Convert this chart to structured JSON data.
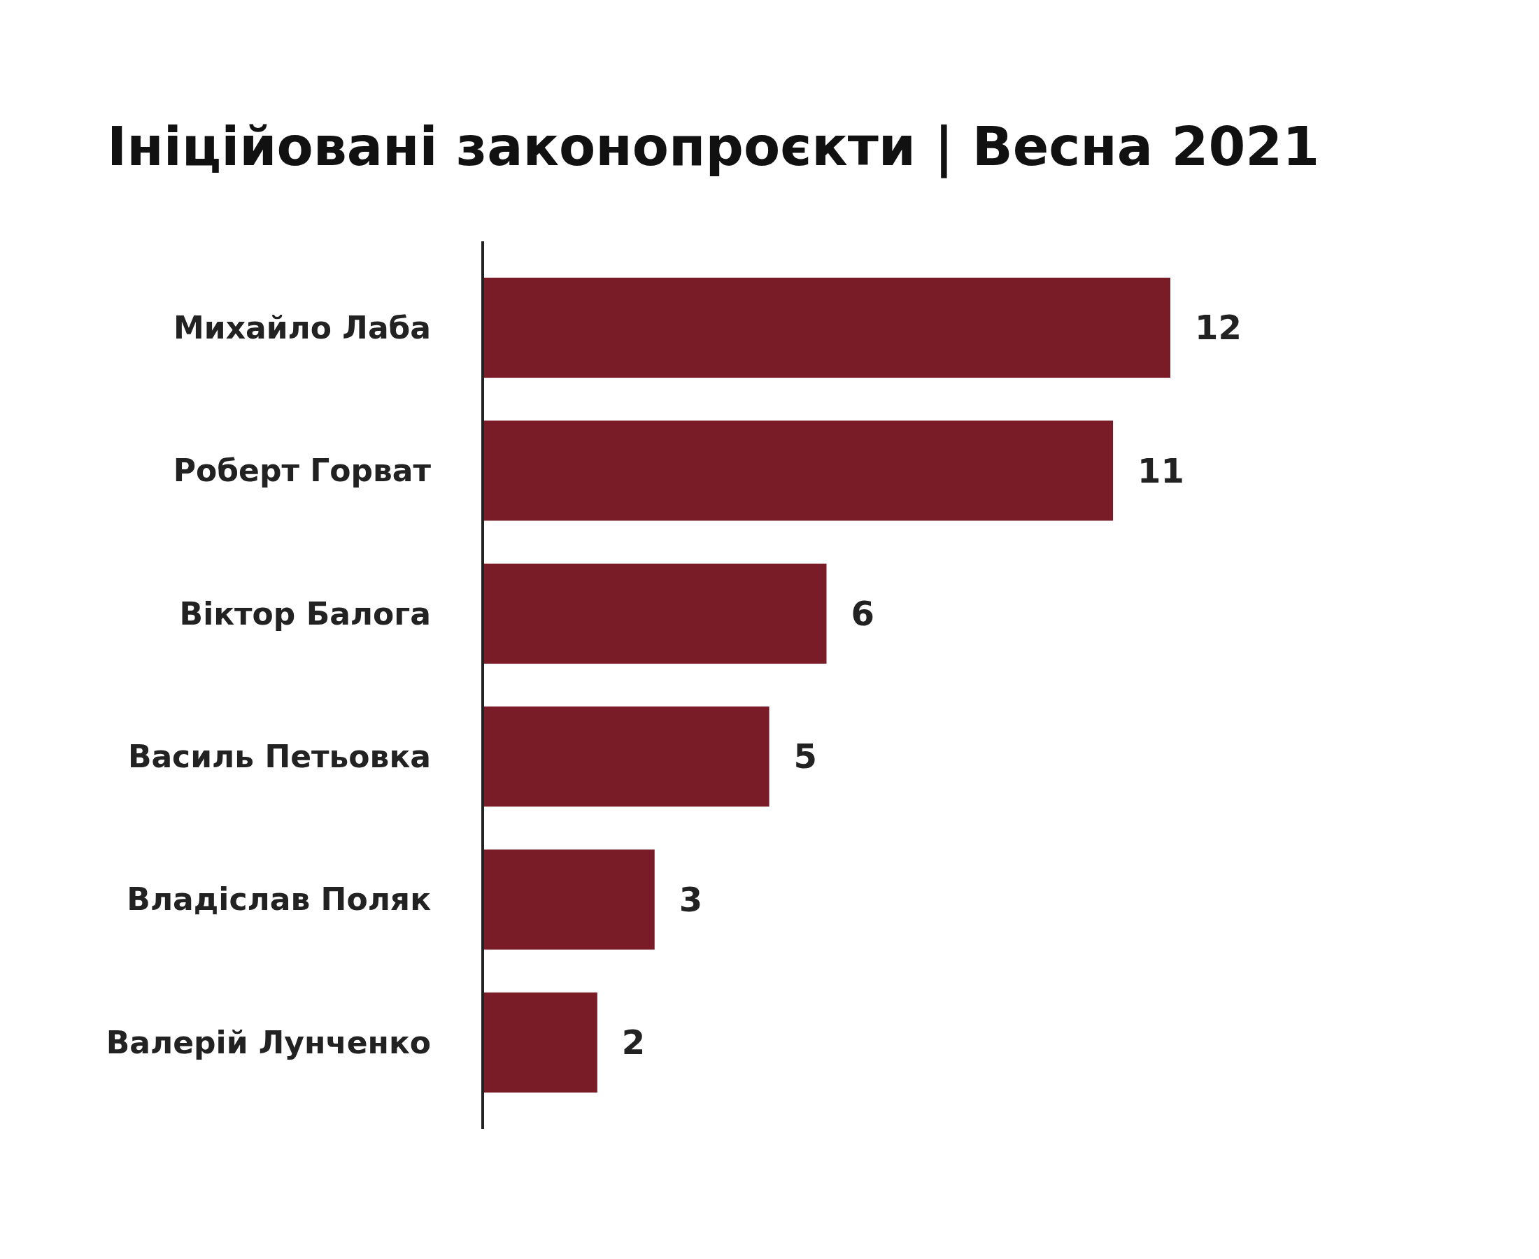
{
  "chart_data": {
    "type": "bar",
    "orientation": "horizontal",
    "title": "Ініційовані законопроєкти | Весна 2021",
    "categories": [
      "Михайло Лаба",
      "Роберт Горват",
      "Віктор Балога",
      "Василь Петьовка",
      "Владіслав Поляк",
      "Валерій Лунченко"
    ],
    "values": [
      12,
      11,
      6,
      5,
      3,
      2
    ],
    "color": "#7a1c28",
    "data_labels": true
  }
}
